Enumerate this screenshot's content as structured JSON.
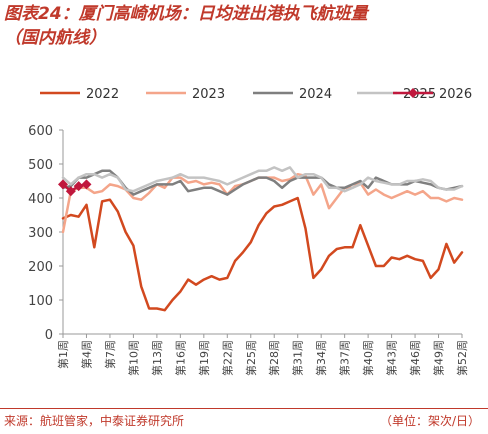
{
  "title": {
    "line1": "图表24：厦门高崎机场：日均进出港执飞航班量",
    "line2": "（国内航线）"
  },
  "footer": {
    "source": "来源：航班管家，中泰证券研究所",
    "unit": "（单位：架次/日）"
  },
  "chart_data": {
    "type": "line",
    "ylim": [
      0,
      600
    ],
    "yticks": [
      0,
      100,
      200,
      300,
      400,
      500,
      600
    ],
    "xlim": [
      1,
      52
    ],
    "xtick_labels": [
      "第1周",
      "第4周",
      "第7周",
      "第10周",
      "第13周",
      "第16周",
      "第19周",
      "第22周",
      "第25周",
      "第28周",
      "第31周",
      "第34周",
      "第37周",
      "第40周",
      "第43周",
      "第46周",
      "第49周",
      "第52周"
    ],
    "xtick_weeks": [
      1,
      4,
      7,
      10,
      13,
      16,
      19,
      22,
      25,
      28,
      31,
      34,
      37,
      40,
      43,
      46,
      49,
      52
    ],
    "legend_position": "top",
    "series": [
      {
        "name": "2022",
        "color": "#d2491f",
        "marker": false,
        "width": 2.5,
        "values": [
          340,
          350,
          345,
          380,
          255,
          390,
          395,
          360,
          300,
          260,
          140,
          75,
          75,
          70,
          100,
          125,
          160,
          145,
          160,
          170,
          160,
          165,
          215,
          240,
          270,
          320,
          355,
          375,
          380,
          390,
          400,
          310,
          165,
          190,
          230,
          250,
          255,
          255,
          320,
          260,
          200,
          200,
          225,
          220,
          230,
          220,
          215,
          165,
          190,
          265,
          210,
          240
        ]
      },
      {
        "name": "2023",
        "color": "#f4a58a",
        "marker": false,
        "width": 2.5,
        "values": [
          300,
          420,
          430,
          430,
          415,
          420,
          440,
          435,
          425,
          400,
          395,
          415,
          440,
          430,
          460,
          460,
          445,
          450,
          440,
          445,
          440,
          410,
          435,
          440,
          450,
          460,
          460,
          460,
          450,
          455,
          470,
          465,
          410,
          440,
          370,
          400,
          430,
          430,
          445,
          410,
          425,
          410,
          400,
          410,
          420,
          410,
          420,
          400,
          400,
          390,
          400,
          395
        ]
      },
      {
        "name": "2024",
        "color": "#7f7f7f",
        "marker": false,
        "width": 2.5,
        "values": [
          430,
          435,
          460,
          460,
          470,
          480,
          480,
          460,
          430,
          410,
          420,
          430,
          440,
          440,
          440,
          450,
          420,
          425,
          430,
          430,
          420,
          410,
          425,
          440,
          450,
          460,
          460,
          450,
          430,
          450,
          460,
          460,
          460,
          460,
          440,
          430,
          430,
          440,
          450,
          430,
          460,
          450,
          440,
          440,
          440,
          450,
          445,
          440,
          430,
          425,
          430,
          435
        ]
      },
      {
        "name": "2025",
        "color": "#c3c3c3",
        "marker": false,
        "width": 2.5,
        "values": [
          460,
          440,
          460,
          470,
          470,
          460,
          470,
          460,
          425,
          420,
          430,
          440,
          450,
          455,
          460,
          470,
          460,
          460,
          460,
          455,
          450,
          440,
          450,
          460,
          470,
          480,
          480,
          490,
          480,
          490,
          460,
          470,
          470,
          460,
          430,
          430,
          420,
          430,
          440,
          460,
          450,
          445,
          440,
          440,
          450,
          450,
          455,
          450,
          430,
          425,
          425,
          435
        ]
      },
      {
        "name": "2026",
        "color": "#c0183d",
        "marker": true,
        "width": 2.5,
        "values": [
          440,
          420,
          435,
          440
        ]
      }
    ]
  }
}
